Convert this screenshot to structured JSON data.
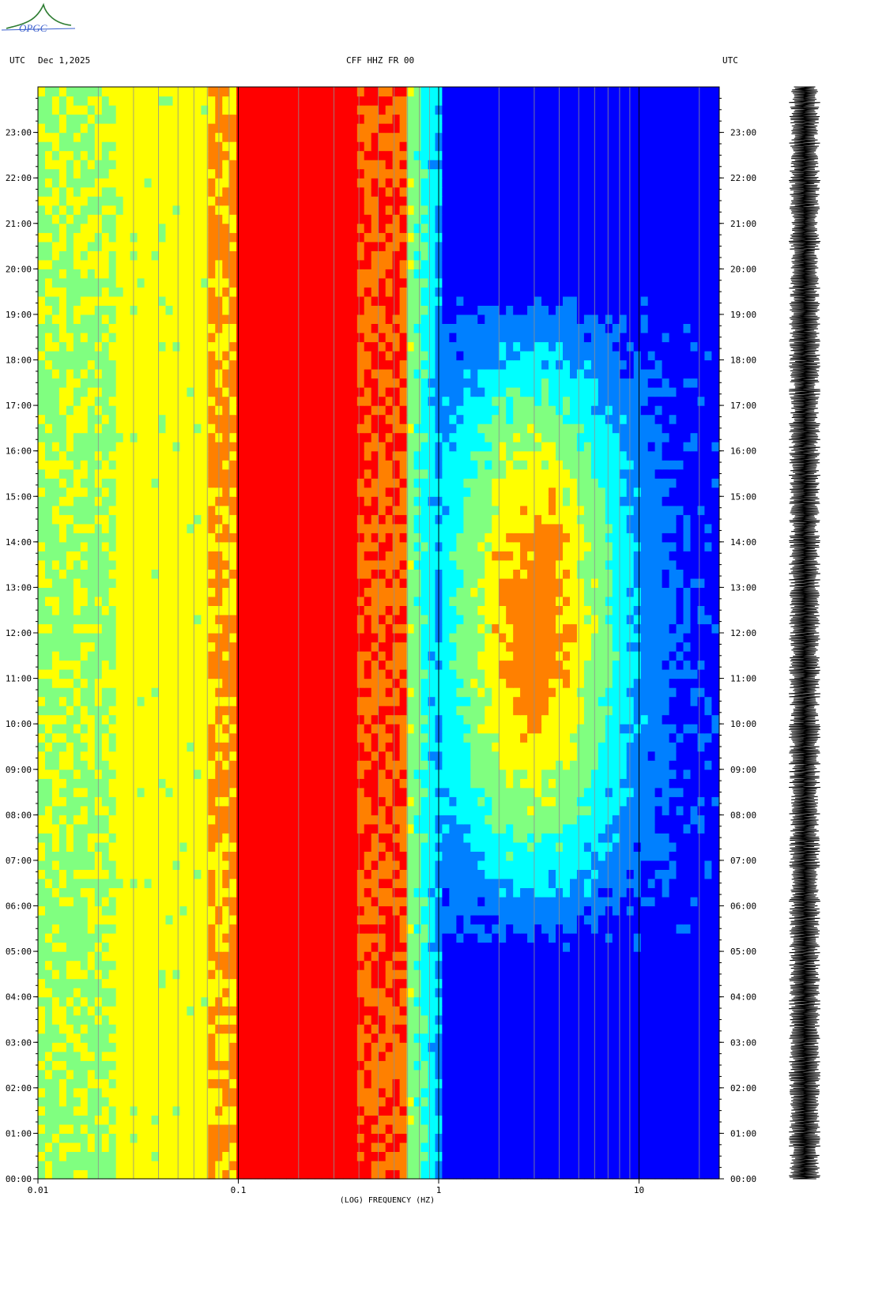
{
  "header": {
    "left_label": "UTC",
    "date": "Dec 1,2025",
    "station": "CFF HHZ FR 00",
    "right_label": "UTC",
    "logo_text": "OPGC"
  },
  "chart_data": {
    "type": "heatmap",
    "title": "CFF HHZ FR 00",
    "xlabel": "(LOG) FREQUENCY (HZ)",
    "x_scale": "log",
    "xlim": [
      0.01,
      25
    ],
    "x_ticks": [
      {
        "value": 0.01,
        "label": "0.01"
      },
      {
        "value": 0.1,
        "label": "0.1"
      },
      {
        "value": 1,
        "label": "1"
      },
      {
        "value": 10,
        "label": "10"
      }
    ],
    "ylabel": "UTC",
    "y_range_hours": [
      0,
      24
    ],
    "y_ticks": [
      "00:00",
      "01:00",
      "02:00",
      "03:00",
      "04:00",
      "05:00",
      "06:00",
      "07:00",
      "08:00",
      "09:00",
      "10:00",
      "11:00",
      "12:00",
      "13:00",
      "14:00",
      "15:00",
      "16:00",
      "17:00",
      "18:00",
      "19:00",
      "20:00",
      "21:00",
      "22:00",
      "23:00"
    ],
    "colormap": [
      "#00007f",
      "#0000ff",
      "#0080ff",
      "#00ffff",
      "#80ff80",
      "#ffff00",
      "#ff8000",
      "#ff0000",
      "#800000"
    ],
    "bands": [
      {
        "from_hz": 0.01,
        "to_hz": 0.024,
        "level": "green-yellow"
      },
      {
        "from_hz": 0.024,
        "to_hz": 0.072,
        "level": "yellow-orange"
      },
      {
        "from_hz": 0.072,
        "to_hz": 0.1,
        "level": "orange-red"
      },
      {
        "from_hz": 0.1,
        "to_hz": 0.4,
        "level": "dark red"
      },
      {
        "from_hz": 0.4,
        "to_hz": 0.7,
        "level": "red-orange"
      },
      {
        "from_hz": 0.7,
        "to_hz": 1.0,
        "level": "yellow-cyan"
      },
      {
        "from_hz": 1.0,
        "to_hz": 25,
        "level": "blue"
      }
    ],
    "daytime_noise": {
      "from_hz": 2,
      "to_hz": 20,
      "from_hour": 5,
      "to_hour": 19.5,
      "peak_hz": 3
    }
  }
}
